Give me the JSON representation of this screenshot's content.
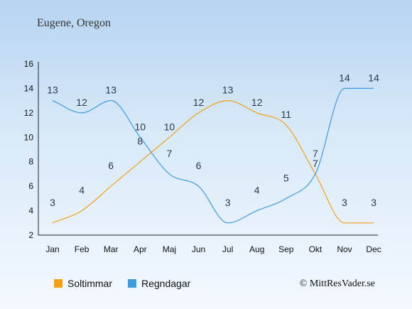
{
  "colors": {
    "sun": "#f5a010",
    "rain": "#3d9be0"
  },
  "chart_data": {
    "type": "line",
    "title": "Eugene, Oregon",
    "categories": [
      "Jan",
      "Feb",
      "Mar",
      "Apr",
      "Maj",
      "Jun",
      "Jul",
      "Aug",
      "Sep",
      "Okt",
      "Nov",
      "Dec"
    ],
    "ylim": [
      2,
      16
    ],
    "yticks": [
      2,
      4,
      6,
      8,
      10,
      12,
      14,
      16
    ],
    "series": [
      {
        "name": "Soltimmar",
        "color": "#f5a010",
        "values": [
          3,
          4,
          6,
          8,
          10,
          12,
          13,
          12,
          11,
          7,
          3,
          3
        ]
      },
      {
        "name": "Regndagar",
        "color": "#3d9be0",
        "values": [
          13,
          12,
          13,
          10,
          7,
          6,
          3,
          4,
          5,
          7,
          14,
          14
        ]
      }
    ],
    "legend_position": "bottom-left"
  },
  "credit": "© MittResVader.se"
}
